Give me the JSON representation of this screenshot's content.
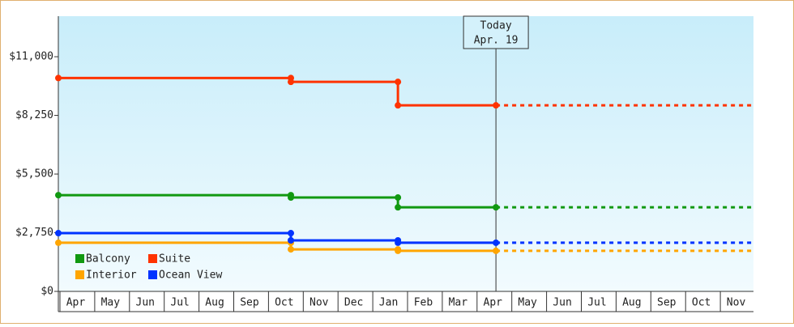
{
  "chart_data": {
    "type": "step-line",
    "categories": [
      "Apr",
      "May",
      "Jun",
      "Jul",
      "Aug",
      "Sep",
      "Oct",
      "Nov",
      "Dec",
      "Jan",
      "Feb",
      "Mar",
      "Apr",
      "May",
      "Jun",
      "Jul",
      "Aug",
      "Sep",
      "Oct",
      "Nov"
    ],
    "xlim": [
      0,
      20
    ],
    "ylim": [
      0,
      12900
    ],
    "yticks": [
      {
        "value": 0,
        "label": "$0"
      },
      {
        "value": 2750,
        "label": "$2,750"
      },
      {
        "value": 5500,
        "label": "$5,500"
      },
      {
        "value": 8250,
        "label": "$8,250"
      },
      {
        "value": 11000,
        "label": "$11,000"
      }
    ],
    "series": [
      {
        "name": "Balcony",
        "color": "#119911",
        "x": [
          0,
          6.69,
          6.69,
          9.77,
          9.77,
          12.59
        ],
        "values": [
          4510,
          4510,
          4400,
          4400,
          3940,
          3940
        ]
      },
      {
        "name": "Suite",
        "color": "#ff3300",
        "x": [
          0,
          6.69,
          6.69,
          9.77,
          9.77,
          12.59
        ],
        "values": [
          10000,
          10000,
          9820,
          9820,
          8720,
          8720
        ]
      },
      {
        "name": "Interior",
        "color": "#ffa500",
        "x": [
          0,
          6.69,
          6.69,
          9.77,
          9.77,
          12.59
        ],
        "values": [
          2280,
          2280,
          1970,
          1970,
          1900,
          1900
        ]
      },
      {
        "name": "Ocean View",
        "color": "#0033ff",
        "x": [
          0,
          6.69,
          6.69,
          9.77,
          9.77,
          12.59
        ],
        "values": [
          2730,
          2730,
          2390,
          2390,
          2280,
          2280
        ]
      }
    ],
    "annotation": {
      "lines": [
        "Today",
        "Apr. 19"
      ],
      "x": 12.59
    }
  }
}
